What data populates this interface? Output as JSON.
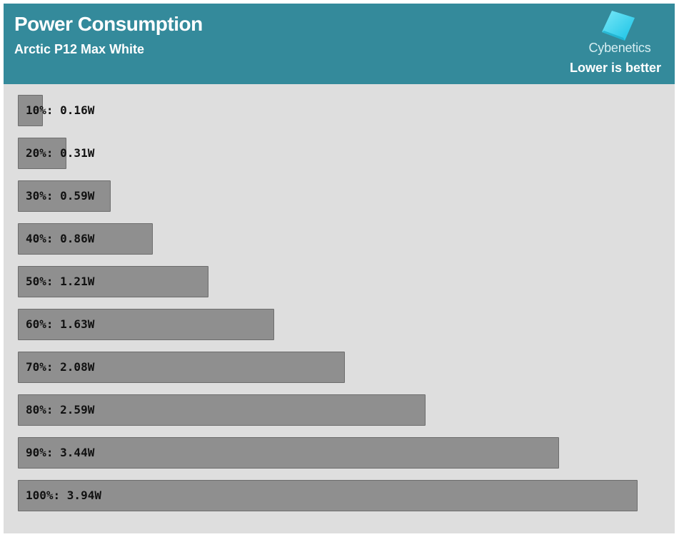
{
  "header": {
    "title": "Power Consumption",
    "subtitle": "Arctic P12 Max White",
    "brand": "Cybenetics",
    "note": "Lower is better"
  },
  "colors": {
    "header_bg": "#348a9b",
    "plot_bg": "#dedede",
    "bar": "#8f8f8f",
    "logo_accent": "#35d6f0"
  },
  "chart_data": {
    "type": "bar",
    "orientation": "horizontal",
    "title": "Power Consumption",
    "subtitle": "Arctic P12 Max White",
    "categories": [
      "10%",
      "20%",
      "30%",
      "40%",
      "50%",
      "60%",
      "70%",
      "80%",
      "90%",
      "100%"
    ],
    "values": [
      0.16,
      0.31,
      0.59,
      0.86,
      1.21,
      1.63,
      2.08,
      2.59,
      3.44,
      3.94
    ],
    "labels": [
      "10%: 0.16W",
      "20%: 0.31W",
      "30%: 0.59W",
      "40%: 0.86W",
      "50%: 1.21W",
      "60%: 1.63W",
      "70%: 2.08W",
      "80%: 2.59W",
      "90%: 3.44W",
      "100%: 3.94W"
    ],
    "unit": "W",
    "grid": false,
    "legend": "none"
  }
}
